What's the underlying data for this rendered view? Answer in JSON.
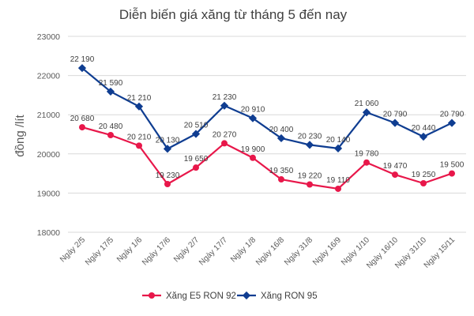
{
  "chart_data": {
    "type": "line",
    "title": "Diễn biến giá xăng từ tháng 5 đến nay",
    "xlabel": "",
    "ylabel": "đồng /lít",
    "ylim": [
      18000,
      23000
    ],
    "yticks": [
      "18000",
      "19000",
      "20000",
      "21000",
      "22000",
      "23000"
    ],
    "grid": true,
    "legend_position": "bottom",
    "categories": [
      "Ngày 2/5",
      "Ngày 17/5",
      "Ngày 1/6",
      "Ngày 17/6",
      "Ngày 2/7",
      "Ngày 17/7",
      "Ngày 1/8",
      "Ngày 16/8",
      "Ngày 31/8",
      "Ngày 16/9",
      "Ngày 1/10",
      "Ngày 16/10",
      "Ngày 31/10",
      "Ngày 15/11"
    ],
    "series": [
      {
        "name": "Xăng E5 RON 92",
        "color": "#e8174a",
        "values": [
          20680,
          20480,
          20210,
          19230,
          19650,
          20270,
          19900,
          19350,
          19220,
          19110,
          19780,
          19470,
          19250,
          19500
        ],
        "labels": [
          "20 680",
          "20 480",
          "20 210",
          "19 230",
          "19 650",
          "20 270",
          "19 900",
          "19 350",
          "19 220",
          "19 110",
          "19 780",
          "19 470",
          "19 250",
          "19 500"
        ]
      },
      {
        "name": "Xăng RON 95",
        "color": "#0f3d91",
        "values": [
          22190,
          21590,
          21210,
          20130,
          20510,
          21230,
          20910,
          20400,
          20230,
          20140,
          21060,
          20790,
          20440,
          20790
        ],
        "labels": [
          "22 190",
          "21 590",
          "21 210",
          "20 130",
          "20 510",
          "21 230",
          "20 910",
          "20 400",
          "20 230",
          "20 140",
          "21 060",
          "20 790",
          "20 440",
          "20 790"
        ]
      }
    ]
  }
}
